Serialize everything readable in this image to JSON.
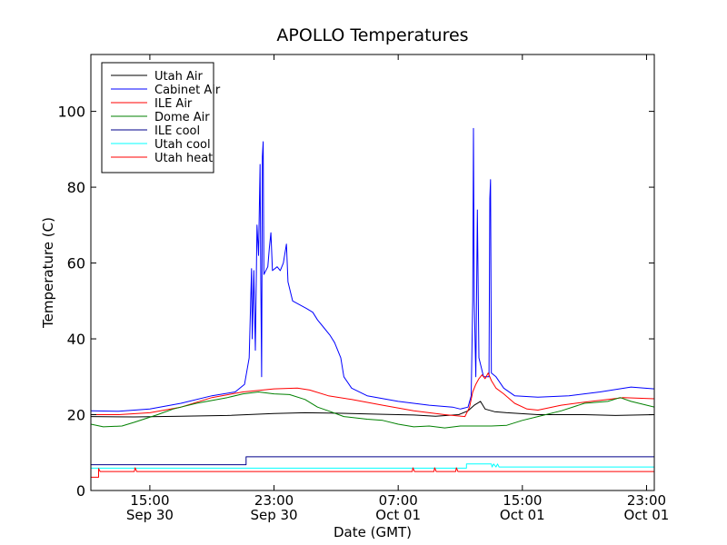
{
  "chart_data": {
    "type": "line",
    "title": "APOLLO Temperatures",
    "xlabel": "Date (GMT)",
    "ylabel": "Temperature (C)",
    "xlim": [
      11.2,
      47.5
    ],
    "ylim": [
      0,
      115
    ],
    "legend_position": "top-left",
    "y_ticks": [
      {
        "value": 0,
        "label": "0"
      },
      {
        "value": 20,
        "label": "20"
      },
      {
        "value": 40,
        "label": "40"
      },
      {
        "value": 60,
        "label": "60"
      },
      {
        "value": 80,
        "label": "80"
      },
      {
        "value": 100,
        "label": "100"
      }
    ],
    "x_ticks": [
      {
        "value": 15,
        "line1": "15:00",
        "line2": "Sep 30"
      },
      {
        "value": 23,
        "line1": "23:00",
        "line2": "Sep 30"
      },
      {
        "value": 31,
        "line1": "07:00",
        "line2": "Oct 01"
      },
      {
        "value": 39,
        "line1": "15:00",
        "line2": "Oct 01"
      },
      {
        "value": 47,
        "line1": "23:00",
        "line2": "Oct 01"
      }
    ],
    "series": [
      {
        "name": "Utah Air",
        "color": "#000000",
        "points": [
          [
            11.2,
            19.5
          ],
          [
            14,
            19.4
          ],
          [
            17,
            19.6
          ],
          [
            20,
            19.8
          ],
          [
            23,
            20.3
          ],
          [
            25,
            20.5
          ],
          [
            27,
            20.4
          ],
          [
            30,
            20.1
          ],
          [
            32,
            19.9
          ],
          [
            33.4,
            19.6
          ],
          [
            34.9,
            20
          ],
          [
            35.5,
            21
          ],
          [
            35.9,
            22.5
          ],
          [
            36.3,
            23.5
          ],
          [
            36.6,
            21.5
          ],
          [
            37.2,
            20.8
          ],
          [
            38,
            20.5
          ],
          [
            40,
            20
          ],
          [
            43,
            20
          ],
          [
            45,
            19.8
          ],
          [
            47.5,
            20
          ]
        ]
      },
      {
        "name": "Cabinet Air",
        "color": "#0000ff",
        "points": [
          [
            11.2,
            21
          ],
          [
            13,
            20.9
          ],
          [
            15,
            21.5
          ],
          [
            17,
            23
          ],
          [
            19,
            25
          ],
          [
            20.5,
            26
          ],
          [
            21.1,
            28
          ],
          [
            21.4,
            35
          ],
          [
            21.55,
            58.5
          ],
          [
            21.6,
            40
          ],
          [
            21.7,
            58
          ],
          [
            21.8,
            37
          ],
          [
            21.9,
            70
          ],
          [
            22,
            62
          ],
          [
            22.1,
            86
          ],
          [
            22.15,
            55
          ],
          [
            22.2,
            30
          ],
          [
            22.25,
            88
          ],
          [
            22.3,
            92
          ],
          [
            22.35,
            57
          ],
          [
            22.6,
            59
          ],
          [
            22.7,
            64
          ],
          [
            22.8,
            68
          ],
          [
            22.9,
            58
          ],
          [
            23.2,
            59
          ],
          [
            23.4,
            58
          ],
          [
            23.6,
            60
          ],
          [
            23.8,
            65
          ],
          [
            23.9,
            55
          ],
          [
            24.2,
            50
          ],
          [
            25.1,
            48
          ],
          [
            25.5,
            47
          ],
          [
            25.8,
            45
          ],
          [
            26.2,
            43
          ],
          [
            26.6,
            41
          ],
          [
            26.9,
            39
          ],
          [
            27.3,
            35
          ],
          [
            27.5,
            30
          ],
          [
            28,
            27
          ],
          [
            29,
            25
          ],
          [
            31,
            23.5
          ],
          [
            33,
            22.5
          ],
          [
            34.5,
            22
          ],
          [
            35,
            21.5
          ],
          [
            35.5,
            22
          ],
          [
            35.7,
            25
          ],
          [
            35.8,
            50
          ],
          [
            35.85,
            95.5
          ],
          [
            35.9,
            50
          ],
          [
            36,
            30
          ],
          [
            36.1,
            74
          ],
          [
            36.2,
            35
          ],
          [
            36.5,
            30
          ],
          [
            36.85,
            30
          ],
          [
            36.9,
            77
          ],
          [
            36.95,
            82
          ],
          [
            37,
            31
          ],
          [
            37.3,
            30
          ],
          [
            37.8,
            27
          ],
          [
            38.5,
            25
          ],
          [
            40,
            24.6
          ],
          [
            42,
            25
          ],
          [
            44,
            26
          ],
          [
            46,
            27.3
          ],
          [
            47.5,
            26.8
          ]
        ]
      },
      {
        "name": "ILE Air",
        "color": "#ff0000",
        "points": [
          [
            11.2,
            20
          ],
          [
            13,
            20
          ],
          [
            15,
            20.5
          ],
          [
            17,
            22
          ],
          [
            19,
            24.5
          ],
          [
            21,
            26
          ],
          [
            23,
            26.8
          ],
          [
            24.5,
            27
          ],
          [
            25.3,
            26.5
          ],
          [
            26.5,
            25
          ],
          [
            28,
            24
          ],
          [
            30,
            22.5
          ],
          [
            32,
            21
          ],
          [
            34,
            20
          ],
          [
            35.3,
            19.5
          ],
          [
            35.6,
            22
          ],
          [
            35.8,
            26
          ],
          [
            36,
            28
          ],
          [
            36.2,
            29.5
          ],
          [
            36.4,
            30.5
          ],
          [
            36.6,
            29.5
          ],
          [
            36.8,
            31
          ],
          [
            37,
            29
          ],
          [
            37.3,
            27
          ],
          [
            37.8,
            25.5
          ],
          [
            38.5,
            23
          ],
          [
            39.3,
            21.5
          ],
          [
            40,
            21.2
          ],
          [
            41.5,
            22.5
          ],
          [
            43,
            23.3
          ],
          [
            44.5,
            24
          ],
          [
            45.5,
            24.5
          ],
          [
            47.5,
            24.2
          ]
        ]
      },
      {
        "name": "Dome Air",
        "color": "#008000",
        "points": [
          [
            11.2,
            17.5
          ],
          [
            12,
            16.8
          ],
          [
            13.2,
            17
          ],
          [
            14,
            18
          ],
          [
            15.5,
            20
          ],
          [
            16.5,
            21.5
          ],
          [
            18,
            23
          ],
          [
            20,
            24.5
          ],
          [
            21,
            25.5
          ],
          [
            22,
            26
          ],
          [
            23,
            25.5
          ],
          [
            24,
            25.3
          ],
          [
            25,
            24
          ],
          [
            25.8,
            22
          ],
          [
            26.5,
            21
          ],
          [
            27.5,
            19.5
          ],
          [
            29,
            18.8
          ],
          [
            30,
            18.5
          ],
          [
            31,
            17.5
          ],
          [
            32,
            16.8
          ],
          [
            33,
            17
          ],
          [
            34,
            16.5
          ],
          [
            35,
            17
          ],
          [
            36,
            17
          ],
          [
            37,
            17
          ],
          [
            38,
            17.2
          ],
          [
            39,
            18.5
          ],
          [
            40,
            19.5
          ],
          [
            41.5,
            21
          ],
          [
            43,
            23
          ],
          [
            44.5,
            23.5
          ],
          [
            45.3,
            24.5
          ],
          [
            46,
            23.5
          ],
          [
            47.5,
            22
          ]
        ]
      },
      {
        "name": "ILE cool",
        "color": "#00008b",
        "points": [
          [
            11.2,
            6.8
          ],
          [
            21.2,
            6.8
          ],
          [
            21.2,
            8.9
          ],
          [
            47.5,
            8.9
          ]
        ]
      },
      {
        "name": "Utah cool",
        "color": "#00ffff",
        "points": [
          [
            11.2,
            5.9
          ],
          [
            35.4,
            5.9
          ],
          [
            35.4,
            7
          ],
          [
            37,
            7
          ],
          [
            37.05,
            6.2
          ],
          [
            37.15,
            7
          ],
          [
            37.3,
            6.2
          ],
          [
            37.4,
            7
          ],
          [
            37.5,
            6.2
          ],
          [
            37.6,
            6.2
          ],
          [
            47.5,
            6.2
          ]
        ]
      },
      {
        "name": "Utah heat",
        "color": "#ff0000",
        "points": [
          [
            11.2,
            3.5
          ],
          [
            11.7,
            3.5
          ],
          [
            11.7,
            5.8
          ],
          [
            11.8,
            5
          ],
          [
            14,
            5
          ],
          [
            14.05,
            6
          ],
          [
            14.15,
            5
          ],
          [
            31.9,
            5
          ],
          [
            31.95,
            6
          ],
          [
            32.05,
            5
          ],
          [
            33.3,
            5
          ],
          [
            33.35,
            6
          ],
          [
            33.45,
            5
          ],
          [
            34.7,
            5
          ],
          [
            34.75,
            6
          ],
          [
            34.85,
            5
          ],
          [
            47.5,
            5
          ]
        ]
      }
    ]
  }
}
